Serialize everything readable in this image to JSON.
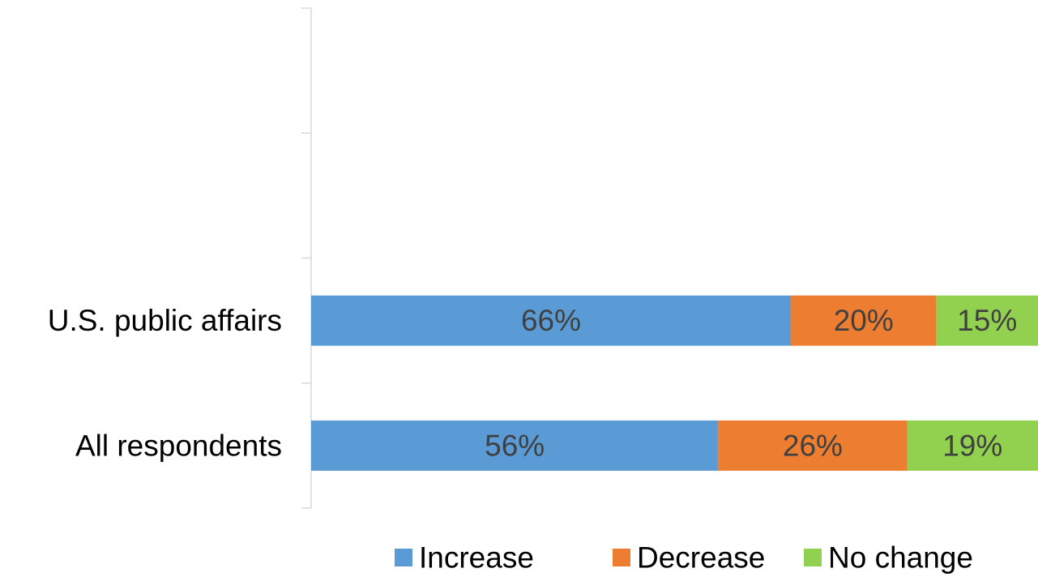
{
  "chart_data": {
    "type": "bar",
    "orientation": "horizontal",
    "stacked": true,
    "categories": [
      "All respondents",
      "U.S. public affairs"
    ],
    "series": [
      {
        "name": "Increase",
        "values": [
          56,
          66
        ],
        "labels": [
          "56%",
          "66%"
        ],
        "color": "#5b9bd5"
      },
      {
        "name": "Decrease",
        "values": [
          26,
          20
        ],
        "labels": [
          "26%",
          "20%"
        ],
        "color": "#ed7d31"
      },
      {
        "name": "No change",
        "values": [
          19,
          15
        ],
        "labels": [
          "19%",
          "15%"
        ],
        "color": "#92d050"
      }
    ],
    "xlim": [
      0,
      100
    ],
    "category_slots": 4,
    "grid": false,
    "legend": "bottom",
    "label_color": "#404040",
    "axis_color": "#d9d9d9"
  }
}
